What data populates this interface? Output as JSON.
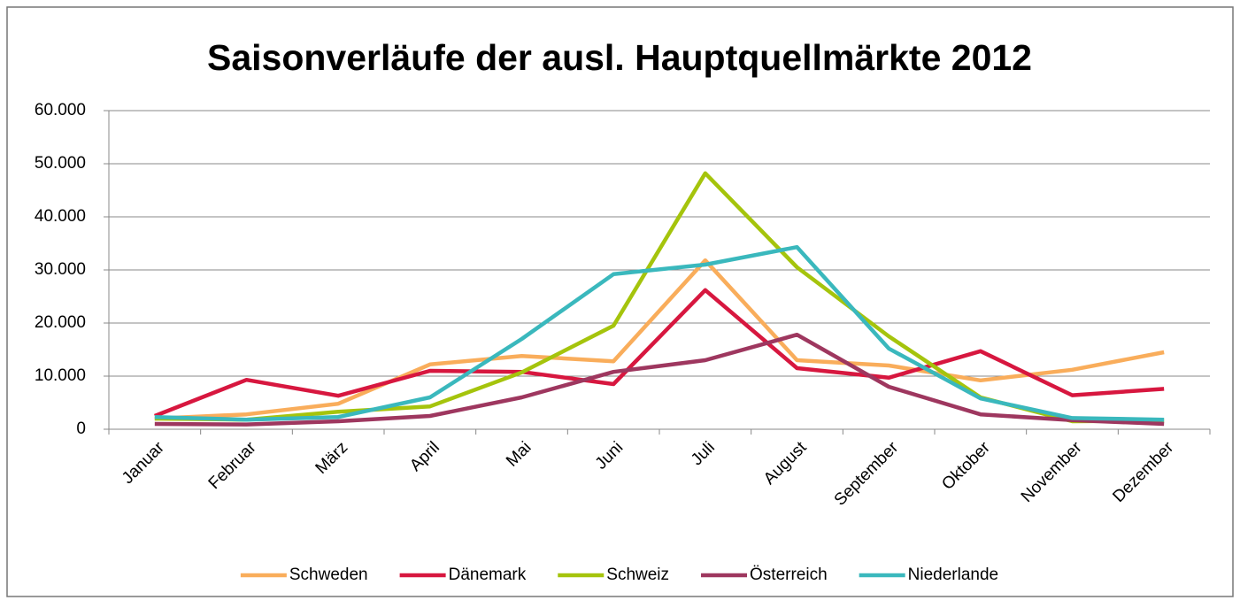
{
  "chart_data": {
    "type": "line",
    "title": "Saisonverläufe der ausl. Hauptquellmärkte 2012",
    "categories": [
      "Januar",
      "Februar",
      "März",
      "April",
      "Mai",
      "Juni",
      "Juli",
      "August",
      "September",
      "Oktober",
      "November",
      "Dezember"
    ],
    "series": [
      {
        "name": "Schweden",
        "color": "#f9ad5b",
        "values": [
          2000,
          2800,
          4800,
          12200,
          13800,
          12800,
          31800,
          13000,
          12000,
          9200,
          11200,
          14500
        ]
      },
      {
        "name": "Dänemark",
        "color": "#d7173f",
        "values": [
          2500,
          9300,
          6300,
          11000,
          10800,
          8500,
          26200,
          11500,
          9700,
          14700,
          6400,
          7600
        ]
      },
      {
        "name": "Schweiz",
        "color": "#a5c40c",
        "values": [
          2000,
          1800,
          3300,
          4300,
          10700,
          19500,
          48200,
          30500,
          17500,
          6000,
          1500,
          1600
        ]
      },
      {
        "name": "Österreich",
        "color": "#9e375f",
        "values": [
          1000,
          900,
          1500,
          2500,
          6000,
          10800,
          13000,
          17800,
          8000,
          2800,
          1700,
          1000
        ]
      },
      {
        "name": "Niederlande",
        "color": "#3ab8bd",
        "values": [
          2300,
          1800,
          2300,
          6000,
          17000,
          29200,
          31000,
          34300,
          15200,
          5800,
          2100,
          1800
        ]
      }
    ],
    "ylim": [
      0,
      60000
    ],
    "yticks": [
      0,
      {
        "value": 10000,
        "label": "10.000"
      },
      {
        "value": 20000,
        "label": "20.000"
      },
      {
        "value": 30000,
        "label": "30.000"
      },
      {
        "value": 40000,
        "label": "40.000"
      },
      {
        "value": 50000,
        "label": "50.000"
      },
      {
        "value": 60000,
        "label": "60.000"
      }
    ],
    "grid": true,
    "legend": "bottom"
  }
}
